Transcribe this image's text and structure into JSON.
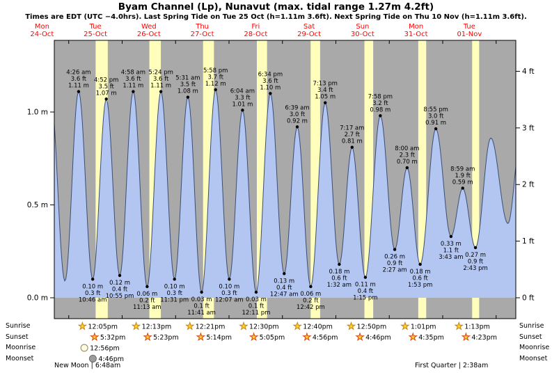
{
  "title": "Byam Channel (Lp), Nunavut (max. tidal range 1.27m 4.2ft)",
  "subtitle": "Times are EDT (UTC −4.0hrs). Last Spring Tide on Tue 25 Oct (h=1.11m 3.6ft). Next Spring Tide on Thu 10 Nov (h=1.11m 3.6ft).",
  "colors": {
    "plot_bg": "#a9a9a9",
    "daylight": "#ffffbb",
    "tide_fill": "#b3c6f2",
    "tide_line": "#3a4d76",
    "day_label": "#ff0000",
    "annotation": "#000000",
    "sun_star": "#ffcf33",
    "sunrise_stroke": "#c8860b",
    "sunset_stroke": "#d4450b",
    "moonrise_fill": "#fffbe0",
    "moonrise_stroke": "#8a8a5a",
    "moonset_fill": "#9c9c9c",
    "moonset_stroke": "#6b6b6b"
  },
  "chart_data": {
    "type": "area",
    "days": [
      {
        "dow": "Mon",
        "date": "24-Oct"
      },
      {
        "dow": "Tue",
        "date": "25-Oct"
      },
      {
        "dow": "Wed",
        "date": "26-Oct"
      },
      {
        "dow": "Thu",
        "date": "27-Oct"
      },
      {
        "dow": "Fri",
        "date": "28-Oct"
      },
      {
        "dow": "Sat",
        "date": "29-Oct"
      },
      {
        "dow": "Sun",
        "date": "30-Oct"
      },
      {
        "dow": "Mon",
        "date": "31-Oct"
      },
      {
        "dow": "Tue",
        "date": "01-Nov"
      }
    ],
    "y_axis_left": {
      "unit": "m",
      "ticks": [
        {
          "label": "0.0 m",
          "value": 0
        },
        {
          "label": "0.5 m",
          "value": 0.5
        },
        {
          "label": "1.0 m",
          "value": 1.0
        }
      ]
    },
    "y_axis_right": {
      "unit": "ft",
      "ticks": [
        {
          "label": "0 ft",
          "value": 0
        },
        {
          "label": "1 ft",
          "value": 1
        },
        {
          "label": "2 ft",
          "value": 2
        },
        {
          "label": "3 ft",
          "value": 3
        },
        {
          "label": "4 ft",
          "value": 4
        }
      ]
    },
    "high_tides": [
      {
        "day": 1,
        "hour": 4.433,
        "height_m": 1.11,
        "lines": [
          "4:26 am",
          "3.6 ft",
          "1.11 m"
        ]
      },
      {
        "day": 1,
        "hour": 16.867,
        "height_m": 1.07,
        "lines": [
          "4:52 pm",
          "3.5 ft",
          "1.07 m"
        ]
      },
      {
        "day": 2,
        "hour": 4.967,
        "height_m": 1.11,
        "lines": [
          "4:58 am",
          "3.6 ft",
          "1.11 m"
        ]
      },
      {
        "day": 2,
        "hour": 17.4,
        "height_m": 1.11,
        "lines": [
          "5:24 pm",
          "3.6 ft",
          "1.11 m"
        ]
      },
      {
        "day": 3,
        "hour": 5.517,
        "height_m": 1.08,
        "lines": [
          "5:31 am",
          "3.5 ft",
          "1.08 m"
        ]
      },
      {
        "day": 3,
        "hour": 17.967,
        "height_m": 1.12,
        "lines": [
          "5:58 pm",
          "3.7 ft",
          "1.12 m"
        ]
      },
      {
        "day": 4,
        "hour": 6.067,
        "height_m": 1.01,
        "lines": [
          "6:04 am",
          "3.3 ft",
          "1.01 m"
        ]
      },
      {
        "day": 4,
        "hour": 18.567,
        "height_m": 1.1,
        "lines": [
          "6:34 pm",
          "3.6 ft",
          "1.10 m"
        ]
      },
      {
        "day": 5,
        "hour": 6.65,
        "height_m": 0.92,
        "lines": [
          "6:39 am",
          "3.0 ft",
          "0.92 m"
        ]
      },
      {
        "day": 5,
        "hour": 19.217,
        "height_m": 1.05,
        "lines": [
          "7:13 pm",
          "3.4 ft",
          "1.05 m"
        ]
      },
      {
        "day": 6,
        "hour": 7.283,
        "height_m": 0.81,
        "lines": [
          "7:17 am",
          "2.7 ft",
          "0.81 m"
        ]
      },
      {
        "day": 6,
        "hour": 19.967,
        "height_m": 0.98,
        "lines": [
          "7:58 pm",
          "3.2 ft",
          "0.98 m"
        ]
      },
      {
        "day": 7,
        "hour": 8.0,
        "height_m": 0.7,
        "lines": [
          "8:00 am",
          "2.3 ft",
          "0.70 m"
        ]
      },
      {
        "day": 7,
        "hour": 20.917,
        "height_m": 0.91,
        "lines": [
          "8:55 pm",
          "3.0 ft",
          "0.91 m"
        ]
      },
      {
        "day": 8,
        "hour": 8.983,
        "height_m": 0.59,
        "lines": [
          "8:59 am",
          "1.9 ft",
          "0.59 m"
        ]
      }
    ],
    "low_tides": [
      {
        "day": 1,
        "hour": 10.767,
        "height_m": 0.1,
        "lines": [
          "0.10 m",
          "0.3 ft",
          "10:46 am"
        ]
      },
      {
        "day": 1,
        "hour": 22.917,
        "height_m": 0.12,
        "lines": [
          "0.12 m",
          "0.4 ft",
          "10:55 pm"
        ]
      },
      {
        "day": 2,
        "hour": 11.217,
        "height_m": 0.06,
        "lines": [
          "0.06 m",
          "0.2 ft",
          "11:13 am"
        ]
      },
      {
        "day": 2,
        "hour": 23.517,
        "height_m": 0.1,
        "lines": [
          "0.10 m",
          "0.3 ft",
          "11:31 pm"
        ]
      },
      {
        "day": 3,
        "hour": 11.683,
        "height_m": 0.03,
        "lines": [
          "0.03 m",
          "0.1 ft",
          "11:41 am"
        ]
      },
      {
        "day": 4,
        "hour": 0.117,
        "height_m": 0.1,
        "lines": [
          "0.10 m",
          "0.3 ft",
          "12:07 am"
        ]
      },
      {
        "day": 4,
        "hour": 12.183,
        "height_m": 0.03,
        "lines": [
          "0.03 m",
          "0.1 ft",
          "12:11 pm"
        ]
      },
      {
        "day": 5,
        "hour": 0.783,
        "height_m": 0.13,
        "lines": [
          "0.13 m",
          "0.4 ft",
          "12:47 am"
        ]
      },
      {
        "day": 5,
        "hour": 12.7,
        "height_m": 0.06,
        "lines": [
          "0.06 m",
          "0.2 ft",
          "12:42 pm"
        ]
      },
      {
        "day": 6,
        "hour": 1.533,
        "height_m": 0.18,
        "lines": [
          "0.18 m",
          "0.6 ft",
          "1:32 am"
        ]
      },
      {
        "day": 6,
        "hour": 13.25,
        "height_m": 0.11,
        "lines": [
          "0.11 m",
          "0.4 ft",
          "1:15 pm"
        ]
      },
      {
        "day": 7,
        "hour": 2.45,
        "height_m": 0.26,
        "lines": [
          "0.26 m",
          "0.9 ft",
          "2:27 am"
        ]
      },
      {
        "day": 7,
        "hour": 13.883,
        "height_m": 0.18,
        "lines": [
          "0.18 m",
          "0.6 ft",
          "1:53 pm"
        ]
      },
      {
        "day": 8,
        "hour": 3.717,
        "height_m": 0.33,
        "lines": [
          "0.33 m",
          "1.1 ft",
          "3:43 am"
        ]
      },
      {
        "day": 8,
        "hour": 14.717,
        "height_m": 0.27,
        "lines": [
          "0.27 m",
          "0.9 ft",
          "2:43 pm"
        ]
      }
    ],
    "curve_padding_extremes": [
      {
        "day": 0,
        "hour": 15.8,
        "height_m": 1.1
      },
      {
        "day": 0,
        "hour": 22.3,
        "height_m": 0.09
      },
      {
        "day": 8,
        "hour": 21.6,
        "height_m": 0.86
      },
      {
        "day": 9,
        "hour": 5.3,
        "height_m": 0.4
      },
      {
        "day": 9,
        "hour": 11.0,
        "height_m": 0.85
      }
    ]
  },
  "astro": {
    "row_labels": [
      "Sunrise",
      "Sunset",
      "Moonrise",
      "Moonset"
    ],
    "sunrise": [
      {
        "day": 1,
        "hour": 12.083,
        "time": "12:05pm"
      },
      {
        "day": 2,
        "hour": 12.217,
        "time": "12:13pm"
      },
      {
        "day": 3,
        "hour": 12.35,
        "time": "12:21pm"
      },
      {
        "day": 4,
        "hour": 12.5,
        "time": "12:30pm"
      },
      {
        "day": 5,
        "hour": 12.667,
        "time": "12:40pm"
      },
      {
        "day": 6,
        "hour": 12.833,
        "time": "12:50pm"
      },
      {
        "day": 7,
        "hour": 13.017,
        "time": "1:01pm"
      },
      {
        "day": 8,
        "hour": 13.217,
        "time": "1:13pm"
      }
    ],
    "sunset": [
      {
        "day": 1,
        "hour": 17.533,
        "time": "5:32pm"
      },
      {
        "day": 2,
        "hour": 17.383,
        "time": "5:23pm"
      },
      {
        "day": 3,
        "hour": 17.233,
        "time": "5:14pm"
      },
      {
        "day": 4,
        "hour": 17.083,
        "time": "5:05pm"
      },
      {
        "day": 5,
        "hour": 16.933,
        "time": "4:56pm"
      },
      {
        "day": 6,
        "hour": 16.767,
        "time": "4:46pm"
      },
      {
        "day": 7,
        "hour": 16.583,
        "time": "4:35pm"
      },
      {
        "day": 8,
        "hour": 16.383,
        "time": "4:23pm"
      }
    ],
    "moonrise": [
      {
        "day": 1,
        "hour": 12.933,
        "time": "12:56pm"
      }
    ],
    "moonset": [
      {
        "day": 1,
        "hour": 16.767,
        "time": "4:46pm"
      }
    ],
    "new_moon": "New Moon | 6:48am",
    "first_quarter": "First Quarter | 2:38am"
  }
}
